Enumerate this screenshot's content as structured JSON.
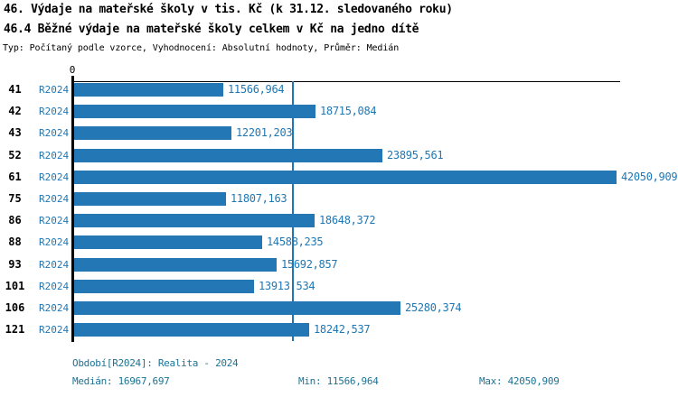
{
  "title_line1": "46. Výdaje na mateřské školy v tis. Kč (k 31.12. sledovaného roku)",
  "title_line2": "46.4 Běžné výdaje na mateřské školy celkem v Kč na jedno dítě",
  "meta_line": "Typ: Počítaný podle vzorce, Vyhodnocení: Absolutní hodnoty, Průměr: Medián",
  "colors": {
    "bar": "#2377b4",
    "accent_text": "#1f77b4",
    "footer_text": "#1c7395",
    "axis": "#000000"
  },
  "chart_data": {
    "type": "bar",
    "orientation": "horizontal",
    "title": "46.4 Běžné výdaje na mateřské školy celkem v Kč na jedno dítě",
    "xlabel": "",
    "ylabel": "",
    "grid": false,
    "legend_position": "none",
    "xlim": [
      0,
      42050.909
    ],
    "x_tick_labels": [
      "0"
    ],
    "categories": [
      "41",
      "42",
      "43",
      "52",
      "61",
      "75",
      "86",
      "88",
      "93",
      "101",
      "106",
      "121"
    ],
    "series": [
      {
        "name": "R2024",
        "values": [
          11566.964,
          18715.084,
          12201.203,
          23895.561,
          42050.909,
          11807.163,
          18648.372,
          14588.235,
          15692.857,
          13913.534,
          25280.374,
          18242.537
        ]
      }
    ],
    "value_labels": [
      "11566,964",
      "18715,084",
      "12201,203",
      "23895,561",
      "42050,909",
      "11807,163",
      "18648,372",
      "14588,235",
      "15692,857",
      "13913,534",
      "25280,374",
      "18242,537"
    ],
    "median_line_value": 16967.697
  },
  "footer": {
    "period_label": "Období[R2024]: Realita - 2024",
    "median_label": "Medián: 16967,697",
    "min_label": "Min: 11566,964",
    "max_label": "Max: 42050,909"
  }
}
